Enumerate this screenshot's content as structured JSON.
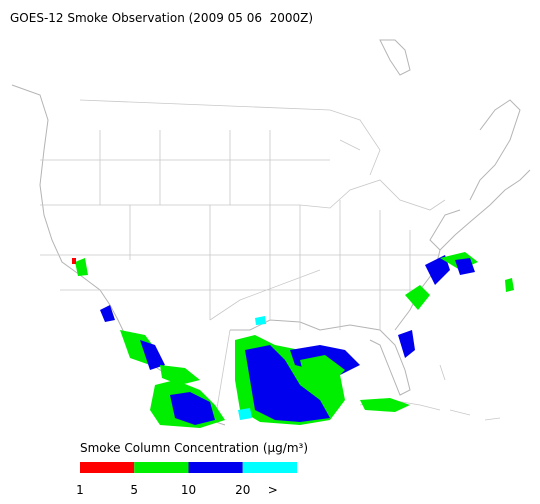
{
  "title": "GOES-12 Smoke Observation (2009 05 06  2000Z)",
  "legend": {
    "title": "Smoke Column Concentration (μg/m³)",
    "colors": [
      "#ff0000",
      "#00ee00",
      "#0000ee",
      "#00ffff"
    ],
    "labels": [
      "1",
      "5",
      "10",
      "20",
      ">"
    ]
  }
}
